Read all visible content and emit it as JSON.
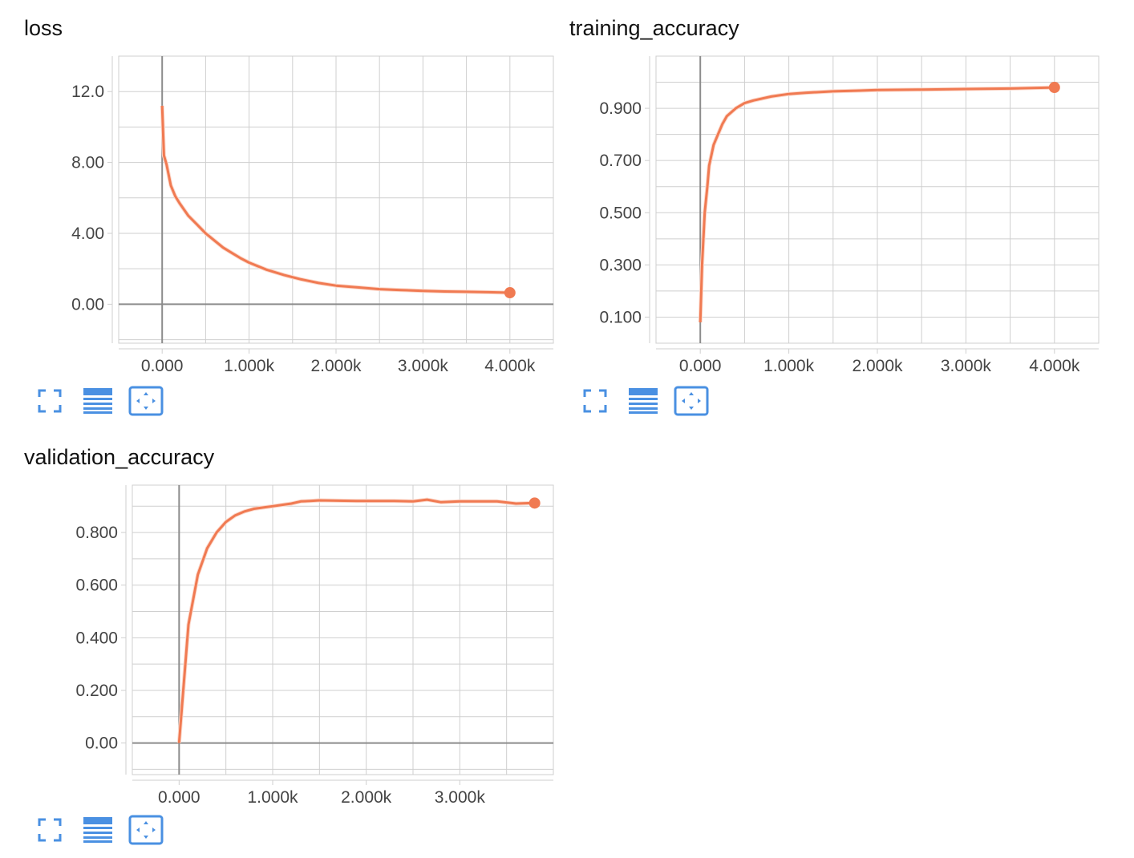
{
  "colors": {
    "series": "#f07a52",
    "series_raw": "#fcd9cc",
    "grid": "#cfcfcf",
    "axis": "#8c8c8c",
    "icon": "#4a90e2"
  },
  "charts": [
    {
      "title": "loss",
      "toolbar_icons": [
        "fit-to-screen-icon",
        "data-table-icon",
        "expand-icon"
      ]
    },
    {
      "title": "training_accuracy",
      "toolbar_icons": [
        "fit-to-screen-icon",
        "data-table-icon",
        "expand-icon"
      ]
    },
    {
      "title": "validation_accuracy",
      "toolbar_icons": [
        "fit-to-screen-icon",
        "data-table-icon",
        "expand-icon"
      ]
    }
  ],
  "chart_data": [
    {
      "type": "line",
      "title": "loss",
      "xlabel": "",
      "ylabel": "",
      "xlim": [
        -500,
        4500
      ],
      "ylim": [
        -2.2,
        14
      ],
      "xticks": [
        0,
        1000,
        2000,
        3000,
        4000
      ],
      "xtick_labels": [
        "0.000",
        "1.000k",
        "2.000k",
        "3.000k",
        "4.000k"
      ],
      "yticks": [
        0,
        4,
        8,
        12
      ],
      "ytick_labels": [
        "0.00",
        "4.00",
        "8.00",
        "12.0"
      ],
      "grid": true,
      "series": [
        {
          "x": [
            0,
            20,
            50,
            100,
            150,
            200,
            300,
            400,
            500,
            600,
            700,
            800,
            900,
            1000,
            1200,
            1400,
            1600,
            1800,
            2000,
            2250,
            2500,
            2750,
            3000,
            3250,
            3500,
            3750,
            4000
          ],
          "y": [
            11.2,
            8.4,
            7.9,
            6.7,
            6.1,
            5.7,
            5.0,
            4.5,
            4.0,
            3.6,
            3.2,
            2.9,
            2.6,
            2.35,
            1.95,
            1.65,
            1.4,
            1.2,
            1.05,
            0.95,
            0.85,
            0.8,
            0.75,
            0.72,
            0.7,
            0.68,
            0.65
          ]
        }
      ]
    },
    {
      "type": "line",
      "title": "training_accuracy",
      "xlabel": "",
      "ylabel": "",
      "xlim": [
        -500,
        4500
      ],
      "ylim": [
        0,
        1.1
      ],
      "xticks": [
        0,
        1000,
        2000,
        3000,
        4000
      ],
      "xtick_labels": [
        "0.000",
        "1.000k",
        "2.000k",
        "3.000k",
        "4.000k"
      ],
      "yticks": [
        0.1,
        0.3,
        0.5,
        0.7,
        0.9
      ],
      "ytick_labels": [
        "0.100",
        "0.300",
        "0.500",
        "0.700",
        "0.900"
      ],
      "grid": true,
      "series": [
        {
          "x": [
            0,
            20,
            50,
            80,
            100,
            150,
            200,
            250,
            300,
            400,
            500,
            600,
            800,
            1000,
            1200,
            1500,
            1800,
            2000,
            2500,
            3000,
            3500,
            4000
          ],
          "y": [
            0.08,
            0.3,
            0.5,
            0.6,
            0.68,
            0.76,
            0.8,
            0.84,
            0.87,
            0.9,
            0.92,
            0.93,
            0.945,
            0.955,
            0.96,
            0.965,
            0.968,
            0.97,
            0.972,
            0.974,
            0.976,
            0.98
          ]
        }
      ]
    },
    {
      "type": "line",
      "title": "validation_accuracy",
      "xlabel": "",
      "ylabel": "",
      "xlim": [
        -500,
        4000
      ],
      "ylim": [
        -0.12,
        0.98
      ],
      "xticks": [
        0,
        1000,
        2000,
        3000
      ],
      "xtick_labels": [
        "0.000",
        "1.000k",
        "2.000k",
        "3.000k"
      ],
      "yticks": [
        0,
        0.2,
        0.4,
        0.6,
        0.8
      ],
      "ytick_labels": [
        "0.00",
        "0.200",
        "0.400",
        "0.600",
        "0.800"
      ],
      "grid": true,
      "series": [
        {
          "x": [
            0,
            100,
            200,
            300,
            400,
            500,
            600,
            700,
            800,
            900,
            1000,
            1100,
            1200,
            1300,
            1400,
            1500,
            1700,
            1900,
            2100,
            2300,
            2500,
            2650,
            2800,
            3000,
            3200,
            3400,
            3600,
            3800
          ],
          "y": [
            0.0,
            0.45,
            0.64,
            0.74,
            0.8,
            0.84,
            0.865,
            0.88,
            0.89,
            0.895,
            0.9,
            0.905,
            0.91,
            0.918,
            0.92,
            0.922,
            0.921,
            0.92,
            0.92,
            0.92,
            0.918,
            0.925,
            0.915,
            0.918,
            0.918,
            0.918,
            0.91,
            0.912
          ]
        }
      ]
    }
  ]
}
